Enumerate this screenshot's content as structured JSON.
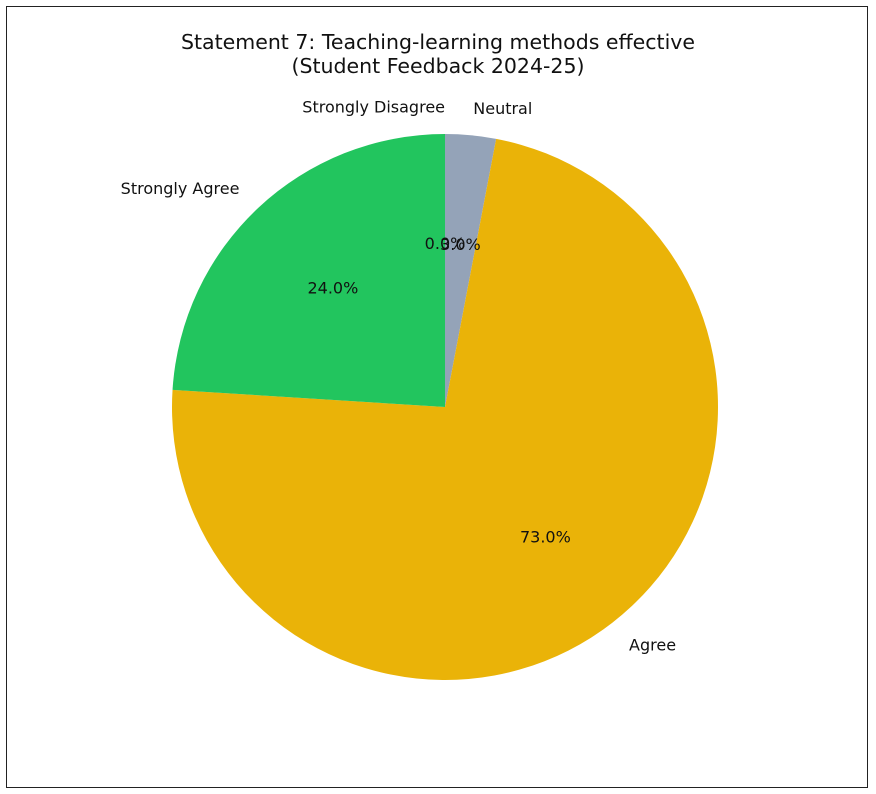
{
  "chart_data": {
    "type": "pie",
    "title_line1": "Statement 7: Teaching-learning methods effective",
    "title_line2": "(Student Feedback 2024-25)",
    "slices": [
      {
        "label": "Neutral",
        "value": 3.0,
        "pct_label": "3.0%",
        "color": "#94a3b8"
      },
      {
        "label": "Agree",
        "value": 73.0,
        "pct_label": "73.0%",
        "color": "#eab308"
      },
      {
        "label": "Strongly Agree",
        "value": 24.0,
        "pct_label": "24.0%",
        "color": "#22c55e"
      },
      {
        "label": "Strongly Disagree",
        "value": 0.0,
        "pct_label": "0.0%",
        "color": "#ef4444"
      }
    ],
    "start": "top",
    "direction": "clockwise",
    "legend": "none"
  }
}
